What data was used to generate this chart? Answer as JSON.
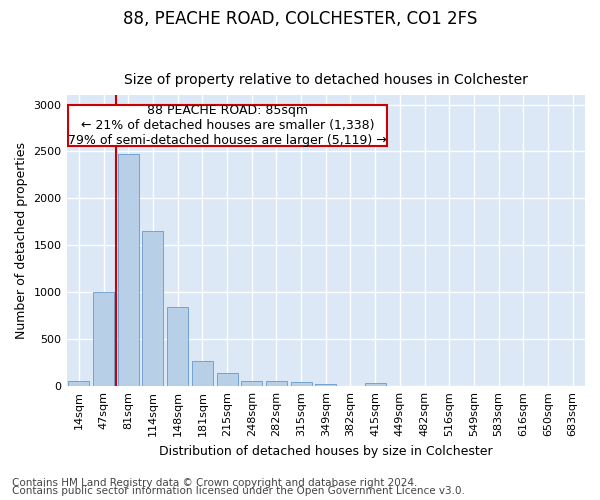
{
  "title": "88, PEACHE ROAD, COLCHESTER, CO1 2FS",
  "subtitle": "Size of property relative to detached houses in Colchester",
  "xlabel": "Distribution of detached houses by size in Colchester",
  "ylabel": "Number of detached properties",
  "categories": [
    "14sqm",
    "47sqm",
    "81sqm",
    "114sqm",
    "148sqm",
    "181sqm",
    "215sqm",
    "248sqm",
    "282sqm",
    "315sqm",
    "349sqm",
    "382sqm",
    "415sqm",
    "449sqm",
    "482sqm",
    "516sqm",
    "549sqm",
    "583sqm",
    "616sqm",
    "650sqm",
    "683sqm"
  ],
  "values": [
    55,
    1000,
    2470,
    1650,
    840,
    270,
    140,
    55,
    50,
    40,
    20,
    0,
    30,
    0,
    0,
    0,
    0,
    0,
    0,
    0,
    0
  ],
  "bar_color": "#b8cfe8",
  "bar_edge_color": "#6699cc",
  "subject_line_bar_index": 2,
  "annotation_text": "88 PEACHE ROAD: 85sqm\n← 21% of detached houses are smaller (1,338)\n79% of semi-detached houses are larger (5,119) →",
  "annotation_box_color": "#cc0000",
  "ylim": [
    0,
    3100
  ],
  "yticks": [
    0,
    500,
    1000,
    1500,
    2000,
    2500,
    3000
  ],
  "footer_line1": "Contains HM Land Registry data © Crown copyright and database right 2024.",
  "footer_line2": "Contains public sector information licensed under the Open Government Licence v3.0.",
  "fig_bg_color": "#ffffff",
  "plot_bg_color": "#dce8f5",
  "grid_color": "#ffffff",
  "title_fontsize": 12,
  "subtitle_fontsize": 10,
  "axis_label_fontsize": 9,
  "tick_fontsize": 8,
  "annotation_fontsize": 9,
  "footer_fontsize": 7.5
}
